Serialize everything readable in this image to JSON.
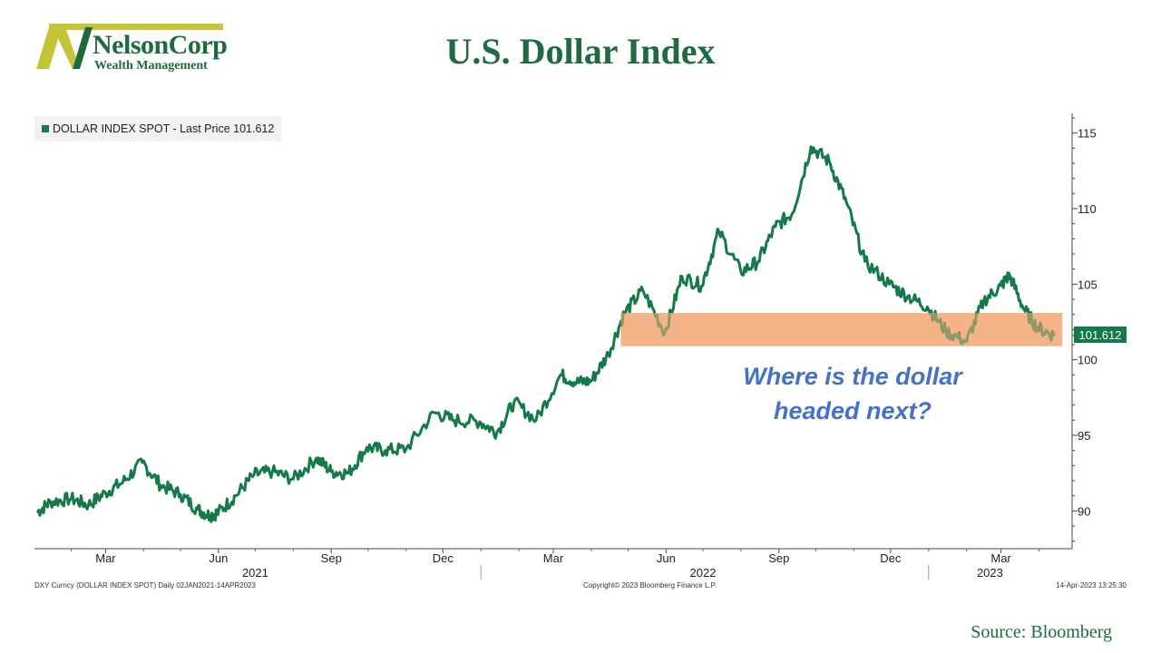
{
  "logo": {
    "name": "NelsonCorp",
    "subtitle": "Wealth Management"
  },
  "title": "U.S. Dollar Index",
  "legend": "DOLLAR INDEX SPOT - Last Price 101.612",
  "annotation": "Where is the dollar headed next?",
  "footer": {
    "left": "DXY Curncy (DOLLAR INDEX SPOT)  Daily 02JAN2021-14APR2023",
    "center": "Copyright© 2023 Bloomberg Finance L.P.",
    "right": "14-Apr-2023 13:25:30"
  },
  "source": "Source:  Bloomberg",
  "colors": {
    "line": "#147a4a",
    "band": "#f4b183",
    "title": "#1e6b41",
    "annotation": "#4472c4"
  },
  "chart_data": {
    "type": "line",
    "series": [
      {
        "name": "DOLLAR INDEX SPOT",
        "last_price": "101.612",
        "x": [
          "2021-01-04",
          "2021-01-15",
          "2021-02-01",
          "2021-02-15",
          "2021-03-01",
          "2021-03-15",
          "2021-03-31",
          "2021-04-15",
          "2021-05-01",
          "2021-05-15",
          "2021-05-25",
          "2021-06-01",
          "2021-06-15",
          "2021-06-30",
          "2021-07-15",
          "2021-08-01",
          "2021-08-20",
          "2021-09-01",
          "2021-09-15",
          "2021-09-30",
          "2021-10-15",
          "2021-11-01",
          "2021-11-24",
          "2021-12-10",
          "2021-12-31",
          "2022-01-14",
          "2022-01-28",
          "2022-02-15",
          "2022-03-07",
          "2022-03-20",
          "2022-04-01",
          "2022-04-15",
          "2022-04-28",
          "2022-05-13",
          "2022-05-31",
          "2022-06-14",
          "2022-06-30",
          "2022-07-14",
          "2022-08-01",
          "2022-08-15",
          "2022-08-29",
          "2022-09-12",
          "2022-09-27",
          "2022-10-12",
          "2022-10-26",
          "2022-11-10",
          "2022-11-30",
          "2022-12-15",
          "2022-12-31",
          "2023-01-15",
          "2023-02-01",
          "2023-02-15",
          "2023-03-01",
          "2023-03-08",
          "2023-03-20",
          "2023-03-31",
          "2023-04-14"
        ],
        "values": [
          89.9,
          90.6,
          90.8,
          90.4,
          91.2,
          91.9,
          93.2,
          91.7,
          91.1,
          90.1,
          89.7,
          89.9,
          91.0,
          92.4,
          92.6,
          92.1,
          93.5,
          92.6,
          92.5,
          94.2,
          94.0,
          94.1,
          96.5,
          96.0,
          95.9,
          95.2,
          97.2,
          96.0,
          99.0,
          98.5,
          98.6,
          100.4,
          103.1,
          104.6,
          101.8,
          105.5,
          104.9,
          108.5,
          105.8,
          106.5,
          108.8,
          109.7,
          114.1,
          113.1,
          110.4,
          106.5,
          105.0,
          104.2,
          103.5,
          101.9,
          101.2,
          103.9,
          104.9,
          105.6,
          103.3,
          102.1,
          101.6
        ]
      }
    ],
    "band": {
      "low": 100.9,
      "high": 103.1
    },
    "y_axis": {
      "ylim": [
        87.5,
        116.3
      ],
      "ticks": [
        90,
        95,
        100,
        105,
        110,
        115
      ],
      "position": "right"
    },
    "x_ticks": [
      {
        "label": "Mar",
        "date": "2021-03-01"
      },
      {
        "label": "Jun",
        "date": "2021-06-01"
      },
      {
        "label": "Sep",
        "date": "2021-09-01"
      },
      {
        "label": "Dec",
        "date": "2021-12-01"
      },
      {
        "label": "Mar",
        "date": "2022-03-01"
      },
      {
        "label": "Jun",
        "date": "2022-06-01"
      },
      {
        "label": "Sep",
        "date": "2022-09-01"
      },
      {
        "label": "Dec",
        "date": "2022-12-01"
      },
      {
        "label": "Mar",
        "date": "2023-03-01"
      }
    ],
    "x_years": [
      {
        "label": "2021",
        "date": "2021-07-01"
      },
      {
        "label": "2022",
        "date": "2022-07-01"
      },
      {
        "label": "2023",
        "date": "2023-02-20"
      }
    ],
    "x_range": [
      "2021-01-02",
      "2023-04-28"
    ],
    "grid": false,
    "legend_position": "top-left"
  }
}
